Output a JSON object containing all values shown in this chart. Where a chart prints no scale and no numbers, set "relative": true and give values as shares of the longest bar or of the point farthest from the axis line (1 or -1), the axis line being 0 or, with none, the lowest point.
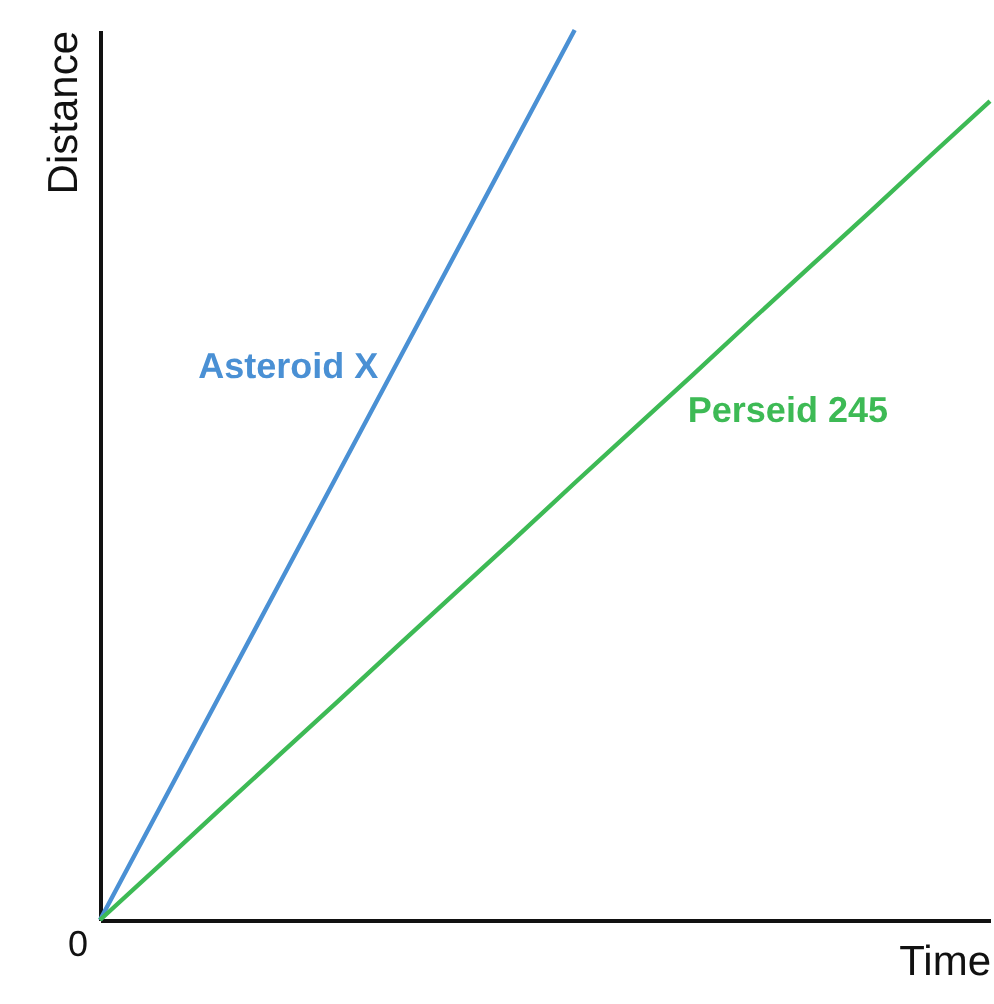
{
  "chart_data": {
    "type": "line",
    "relative": true,
    "xlabel": "Time",
    "ylabel": "Distance",
    "ylim": [
      0,
      1
    ],
    "marker": "none",
    "line_style": "solid",
    "categories": [
      null,
      null,
      null,
      null,
      null,
      null,
      null,
      null,
      null,
      null,
      null,
      null,
      null,
      null,
      null,
      null
    ],
    "series": [
      {
        "name": "Asteroid X",
        "color": "#4a90d4",
        "values": [
          0,
          0.125,
          0.25,
          0.375,
          0.5,
          0.625,
          0.75,
          0.875,
          1,
          null,
          null,
          null,
          null,
          null,
          null,
          null
        ]
      },
      {
        "name": "Perseid 245",
        "color": "#3dba55",
        "values": [
          0,
          0.061,
          0.123,
          0.184,
          0.245,
          0.307,
          0.368,
          0.429,
          0.491,
          0.552,
          0.613,
          0.675,
          0.736,
          0.797,
          0.859,
          0.92
        ]
      }
    ],
    "annotations": [
      "0"
    ]
  }
}
